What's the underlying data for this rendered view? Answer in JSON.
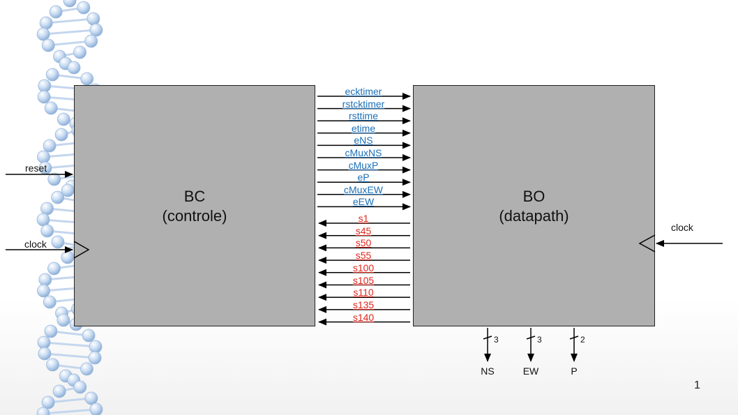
{
  "bc": {
    "title": "BC",
    "subtitle": "(controle)"
  },
  "bo": {
    "title": "BO",
    "subtitle": "(datapath)"
  },
  "bc_inputs": {
    "reset": "reset",
    "clock": "clock"
  },
  "bo_clock": "clock",
  "colors": {
    "out_signals": "#1b6fb8",
    "in_signals": "#e1261c",
    "block_fill": "#b0b0b0"
  },
  "out_signals": [
    "ecktimer",
    "rstcktimer",
    "rsttime",
    "etime",
    "eNS",
    "cMuxNS",
    "cMuxP",
    "eP",
    "cMuxEW",
    "eEW"
  ],
  "in_signals": [
    "s1",
    "s45",
    "s50",
    "s55",
    "s100",
    "s105",
    "s110",
    "s135",
    "s140"
  ],
  "outputs": [
    {
      "name": "NS",
      "width": "3"
    },
    {
      "name": "EW",
      "width": "3"
    },
    {
      "name": "P",
      "width": "2"
    }
  ],
  "page_number": "1",
  "decoration": "dna-helix"
}
